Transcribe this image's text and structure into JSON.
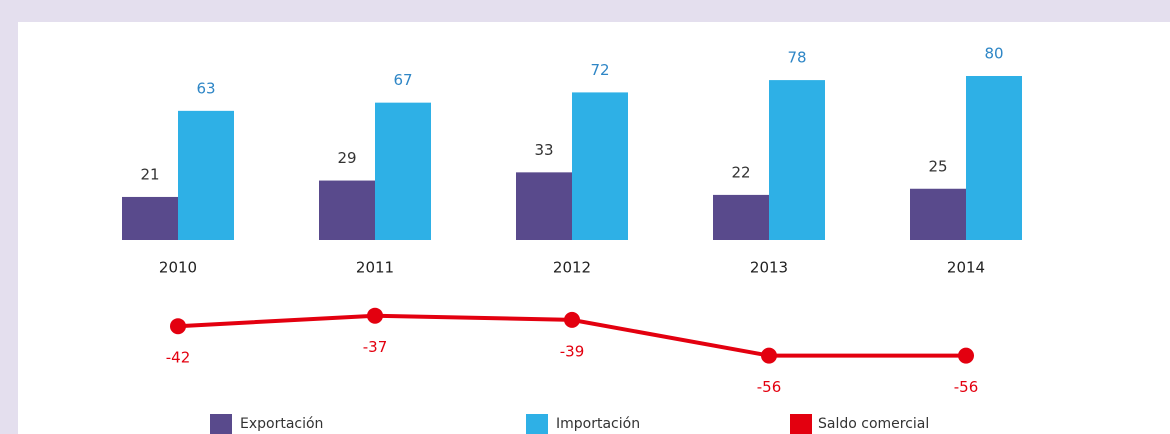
{
  "chart_data": {
    "type": "bar",
    "categories": [
      "2010",
      "2011",
      "2012",
      "2013",
      "2014"
    ],
    "series": [
      {
        "name": "Exportación",
        "color": "#594a8c",
        "label_color": "#333333",
        "values": [
          21,
          29,
          33,
          22,
          25
        ]
      },
      {
        "name": "Importación",
        "color": "#2eb0e6",
        "label_color": "#2e86c6",
        "values": [
          63,
          67,
          72,
          78,
          80
        ]
      },
      {
        "name": "Saldo comercial",
        "type": "line",
        "color": "#e3000f",
        "label_color": "#e3000f",
        "values": [
          -42,
          -37,
          -39,
          -56,
          -56
        ]
      }
    ]
  }
}
